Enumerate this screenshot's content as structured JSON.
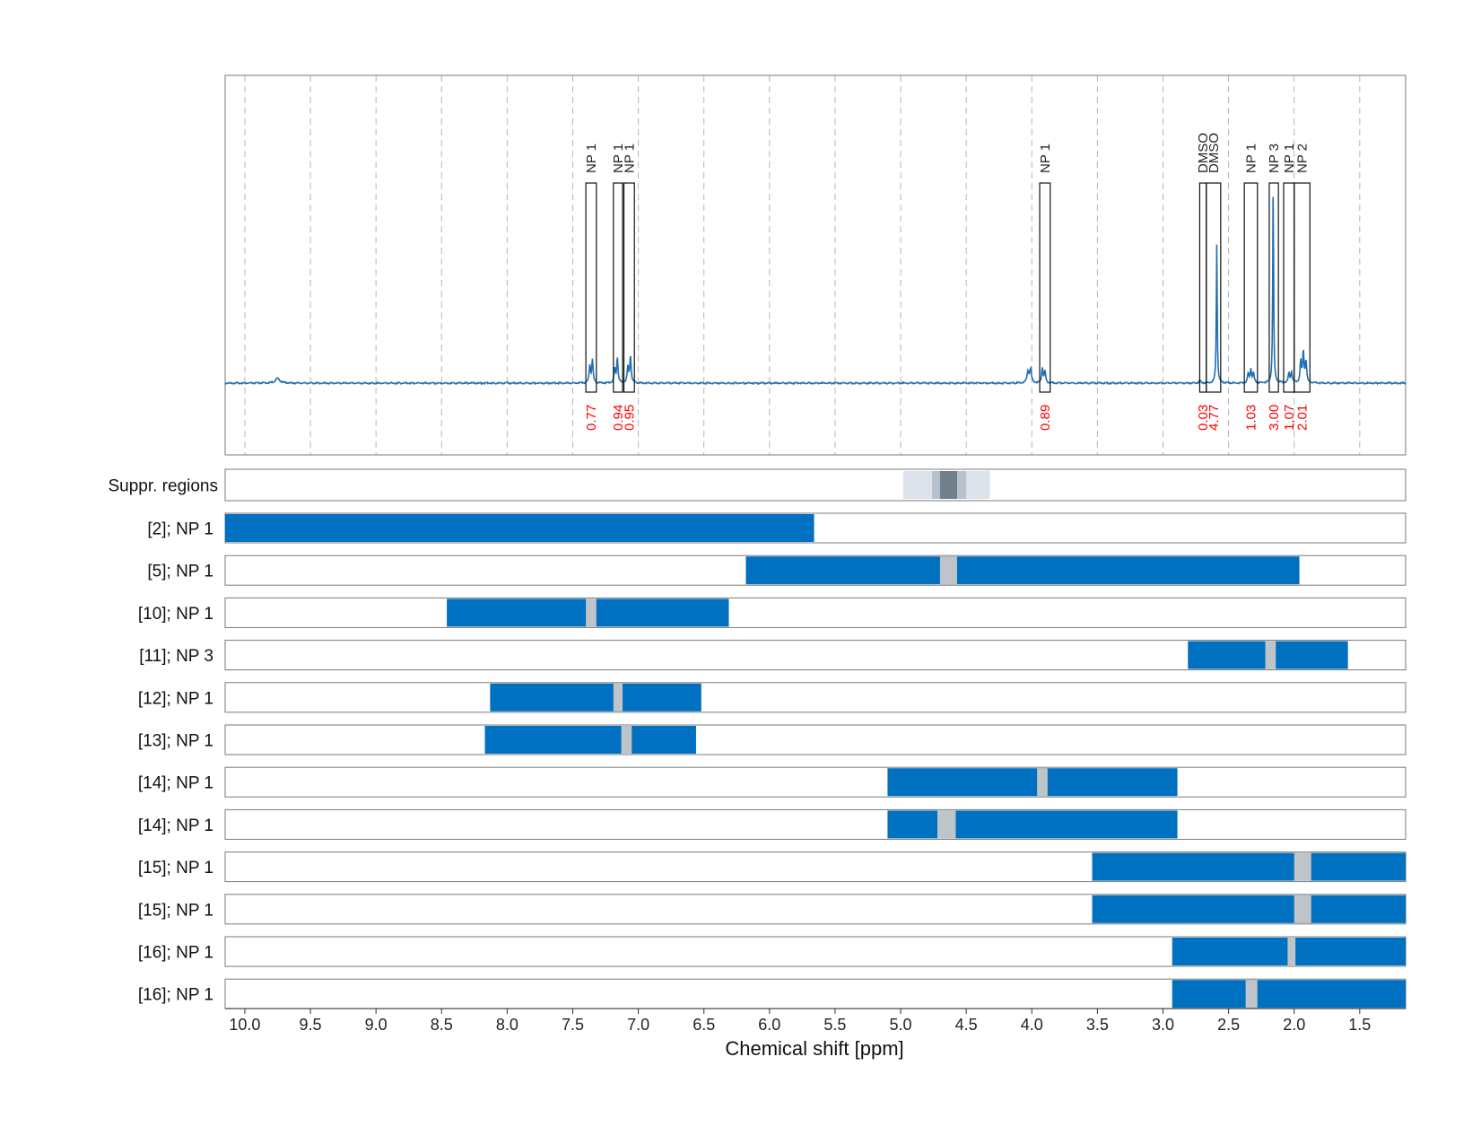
{
  "chart_data": {
    "type": "spectrum",
    "xlabel": "Chemical shift [ppm]",
    "xlim": [
      10.15,
      1.15
    ],
    "x_ticks": [
      "10.0",
      "9.5",
      "9.0",
      "8.5",
      "8.0",
      "7.5",
      "7.0",
      "6.5",
      "6.0",
      "5.5",
      "5.0",
      "4.5",
      "4.0",
      "3.5",
      "3.0",
      "2.5",
      "2.0",
      "1.5"
    ],
    "x_tick_values": [
      10.0,
      9.5,
      9.0,
      8.5,
      8.0,
      7.5,
      7.0,
      6.5,
      6.0,
      5.5,
      5.0,
      4.5,
      4.0,
      3.5,
      3.0,
      2.5,
      2.0,
      1.5
    ],
    "grid": true,
    "colors": {
      "spectrum": "#1f6fb5",
      "bar": "#0070c0",
      "gap": "#bfc4c8",
      "supp_light": "#dde3ea",
      "supp_mid": "#b8c2cc",
      "supp_dark": "#6f7f8c",
      "integral": "#ff0000",
      "frame": "#7a7a7a"
    },
    "spectrum_peaks": [
      {
        "ppm": 9.75,
        "height": 0.025,
        "width": 0.02
      },
      {
        "ppm": 7.37,
        "height": 0.09,
        "width": 0.006
      },
      {
        "ppm": 7.35,
        "height": 0.12,
        "width": 0.006
      },
      {
        "ppm": 7.18,
        "height": 0.07,
        "width": 0.006
      },
      {
        "ppm": 7.16,
        "height": 0.13,
        "width": 0.006
      },
      {
        "ppm": 7.08,
        "height": 0.08,
        "width": 0.006
      },
      {
        "ppm": 7.06,
        "height": 0.14,
        "width": 0.006
      },
      {
        "ppm": 4.03,
        "height": 0.06,
        "width": 0.008
      },
      {
        "ppm": 4.01,
        "height": 0.07,
        "width": 0.008
      },
      {
        "ppm": 3.92,
        "height": 0.08,
        "width": 0.006
      },
      {
        "ppm": 3.9,
        "height": 0.06,
        "width": 0.006
      },
      {
        "ppm": 2.72,
        "height": 0.015,
        "width": 0.006
      },
      {
        "ppm": 2.59,
        "height": 0.72,
        "width": 0.004
      },
      {
        "ppm": 2.35,
        "height": 0.05,
        "width": 0.006
      },
      {
        "ppm": 2.33,
        "height": 0.07,
        "width": 0.006
      },
      {
        "ppm": 2.31,
        "height": 0.05,
        "width": 0.006
      },
      {
        "ppm": 2.16,
        "height": 1.0,
        "width": 0.004
      },
      {
        "ppm": 2.04,
        "height": 0.05,
        "width": 0.006
      },
      {
        "ppm": 2.02,
        "height": 0.06,
        "width": 0.006
      },
      {
        "ppm": 1.95,
        "height": 0.11,
        "width": 0.006
      },
      {
        "ppm": 1.93,
        "height": 0.16,
        "width": 0.006
      },
      {
        "ppm": 1.91,
        "height": 0.11,
        "width": 0.006
      }
    ],
    "peak_boxes": [
      {
        "label": "NP 1",
        "ppm_left": 7.4,
        "ppm_right": 7.32,
        "integral": "0.77"
      },
      {
        "label": "NP 1",
        "ppm_left": 7.19,
        "ppm_right": 7.12,
        "integral": "0.94"
      },
      {
        "label": "NP 1",
        "ppm_left": 7.11,
        "ppm_right": 7.03,
        "integral": "0.95"
      },
      {
        "label": "NP 1",
        "ppm_left": 3.94,
        "ppm_right": 3.86,
        "integral": "0.89"
      },
      {
        "label": "DMSO",
        "ppm_left": 2.72,
        "ppm_right": 2.67,
        "integral": "0.03"
      },
      {
        "label": "DMSO",
        "ppm_left": 2.67,
        "ppm_right": 2.56,
        "integral": "4.77"
      },
      {
        "label": "NP 1",
        "ppm_left": 2.38,
        "ppm_right": 2.28,
        "integral": "1.03"
      },
      {
        "label": "NP 3",
        "ppm_left": 2.19,
        "ppm_right": 2.12,
        "integral": "3.00"
      },
      {
        "label": "NP 1",
        "ppm_left": 2.08,
        "ppm_right": 2.0,
        "integral": "1.07"
      },
      {
        "label": "NP 2",
        "ppm_left": 2.0,
        "ppm_right": 1.88,
        "integral": "2.01"
      }
    ],
    "suppressed_regions": {
      "label": "Suppr. regions",
      "light": [
        4.98,
        4.32
      ],
      "mid": [
        4.76,
        4.5
      ],
      "dark": [
        4.7,
        4.57
      ]
    },
    "rows": [
      {
        "label": "[2]; NP 1",
        "start": 10.15,
        "end": 5.66,
        "gap": null
      },
      {
        "label": "[5]; NP 1",
        "start": 6.18,
        "end": 1.96,
        "gap": [
          4.7,
          4.57
        ]
      },
      {
        "label": "[10]; NP 1",
        "start": 8.46,
        "end": 6.31,
        "gap": [
          7.4,
          7.32
        ]
      },
      {
        "label": "[11]; NP 3",
        "start": 2.81,
        "end": 1.59,
        "gap": [
          2.22,
          2.14
        ]
      },
      {
        "label": "[12]; NP 1",
        "start": 8.13,
        "end": 6.52,
        "gap": [
          7.19,
          7.12
        ]
      },
      {
        "label": "[13]; NP 1",
        "start": 8.17,
        "end": 6.56,
        "gap": [
          7.13,
          7.05
        ]
      },
      {
        "label": "[14]; NP 1",
        "start": 5.1,
        "end": 2.89,
        "gap": [
          3.96,
          3.88
        ]
      },
      {
        "label": "[14]; NP 1",
        "start": 5.1,
        "end": 2.89,
        "gap": [
          4.72,
          4.58
        ]
      },
      {
        "label": "[15]; NP 1",
        "start": 3.54,
        "end": 1.15,
        "gap": [
          2.0,
          1.87
        ]
      },
      {
        "label": "[15]; NP 1",
        "start": 3.54,
        "end": 1.15,
        "gap": [
          2.0,
          1.87
        ]
      },
      {
        "label": "[16]; NP 1",
        "start": 2.93,
        "end": 1.15,
        "gap": [
          2.05,
          1.99
        ]
      },
      {
        "label": "[16]; NP 1",
        "start": 2.93,
        "end": 1.15,
        "gap": [
          2.37,
          2.28
        ]
      }
    ]
  }
}
